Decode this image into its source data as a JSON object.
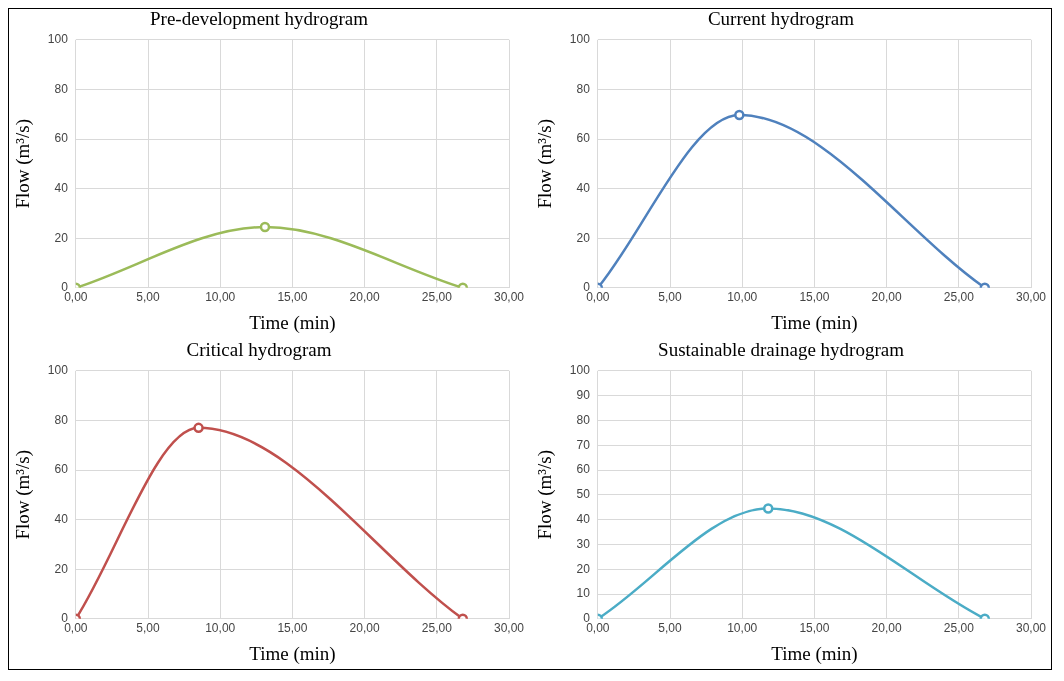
{
  "chart_data": [
    {
      "type": "line",
      "title": "Pre-development hydrogram",
      "xlabel": "Time (min)",
      "ylabel": "Flow (m³/s)",
      "x": [
        0,
        13.1,
        26.8
      ],
      "values": [
        0,
        24.5,
        0
      ],
      "color": "#9bbb59",
      "marker": "circle",
      "xlim": [
        0,
        30
      ],
      "xticks": [
        {
          "value": 0,
          "label": "0,00"
        },
        {
          "value": 5,
          "label": "5,00"
        },
        {
          "value": 10,
          "label": "10,00"
        },
        {
          "value": 15,
          "label": "15,00"
        },
        {
          "value": 20,
          "label": "20,00"
        },
        {
          "value": 25,
          "label": "25,00"
        },
        {
          "value": 30,
          "label": "30,00"
        }
      ],
      "ylim": [
        0,
        100
      ],
      "yticks": [
        0,
        20,
        40,
        60,
        80,
        100
      ],
      "grid": true
    },
    {
      "type": "line",
      "title": "Current hydrogram",
      "xlabel": "Time (min)",
      "ylabel": "Flow (m³/s)",
      "x": [
        0,
        9.8,
        26.8
      ],
      "values": [
        0,
        69.7,
        0
      ],
      "color": "#4f81bd",
      "marker": "circle",
      "xlim": [
        0,
        30
      ],
      "xticks": [
        {
          "value": 0,
          "label": "0,00"
        },
        {
          "value": 5,
          "label": "5,00"
        },
        {
          "value": 10,
          "label": "10,00"
        },
        {
          "value": 15,
          "label": "15,00"
        },
        {
          "value": 20,
          "label": "20,00"
        },
        {
          "value": 25,
          "label": "25,00"
        },
        {
          "value": 30,
          "label": "30,00"
        }
      ],
      "ylim": [
        0,
        100
      ],
      "yticks": [
        0,
        20,
        40,
        60,
        80,
        100
      ],
      "grid": true
    },
    {
      "type": "line",
      "title": "Critical hydrogram",
      "xlabel": "Time (min)",
      "ylabel": "Flow (m³/s)",
      "x": [
        0,
        8.5,
        26.8
      ],
      "values": [
        0,
        77,
        0
      ],
      "color": "#c0504d",
      "marker": "circle",
      "xlim": [
        0,
        30
      ],
      "xticks": [
        {
          "value": 0,
          "label": "0,00"
        },
        {
          "value": 5,
          "label": "5,00"
        },
        {
          "value": 10,
          "label": "10,00"
        },
        {
          "value": 15,
          "label": "15,00"
        },
        {
          "value": 20,
          "label": "20,00"
        },
        {
          "value": 25,
          "label": "25,00"
        },
        {
          "value": 30,
          "label": "30,00"
        }
      ],
      "ylim": [
        0,
        100
      ],
      "yticks": [
        0,
        20,
        40,
        60,
        80,
        100
      ],
      "grid": true
    },
    {
      "type": "line",
      "title": "Sustainable drainage hydrogram",
      "xlabel": "Time (min)",
      "ylabel": "Flow (m³/s)",
      "x": [
        0,
        11.8,
        26.8
      ],
      "values": [
        0,
        44.5,
        0
      ],
      "color": "#4bacc6",
      "marker": "circle",
      "xlim": [
        0,
        30
      ],
      "xticks": [
        {
          "value": 0,
          "label": "0,00"
        },
        {
          "value": 5,
          "label": "5,00"
        },
        {
          "value": 10,
          "label": "10,00"
        },
        {
          "value": 15,
          "label": "15,00"
        },
        {
          "value": 20,
          "label": "20,00"
        },
        {
          "value": 25,
          "label": "25,00"
        },
        {
          "value": 30,
          "label": "30,00"
        }
      ],
      "ylim": [
        0,
        100
      ],
      "yticks": [
        0,
        10,
        20,
        30,
        40,
        50,
        60,
        70,
        80,
        90,
        100
      ],
      "grid": true
    }
  ]
}
